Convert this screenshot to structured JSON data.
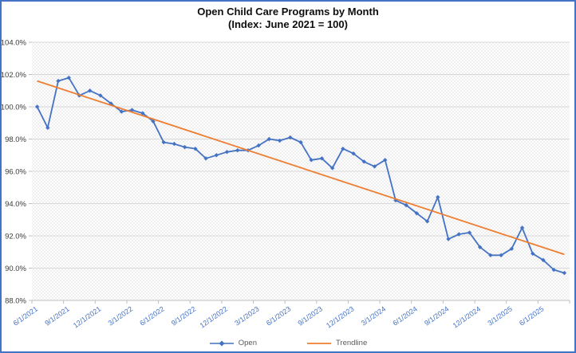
{
  "chart_data": {
    "type": "line",
    "title": "Open Child Care Programs by Month",
    "subtitle": "(Index: June 2021 = 100)",
    "x": [
      "6/1/2021",
      "7/1/2021",
      "8/1/2021",
      "9/1/2021",
      "10/1/2021",
      "11/1/2021",
      "12/1/2021",
      "1/1/2022",
      "2/1/2022",
      "3/1/2022",
      "4/1/2022",
      "5/1/2022",
      "6/1/2022",
      "7/1/2022",
      "8/1/2022",
      "9/1/2022",
      "10/1/2022",
      "11/1/2022",
      "12/1/2022",
      "1/1/2023",
      "2/1/2023",
      "3/1/2023",
      "4/1/2023",
      "5/1/2023",
      "6/1/2023",
      "7/1/2023",
      "8/1/2023",
      "9/1/2023",
      "10/1/2023",
      "11/1/2023",
      "12/1/2023",
      "1/1/2024",
      "2/1/2024",
      "3/1/2024",
      "4/1/2024",
      "5/1/2024",
      "6/1/2024",
      "7/1/2024",
      "8/1/2024",
      "9/1/2024",
      "10/1/2024",
      "11/1/2024",
      "12/1/2024",
      "1/1/2025",
      "2/1/2025",
      "3/1/2025",
      "4/1/2025",
      "5/1/2025",
      "6/1/2025",
      "7/1/2025",
      "8/1/2025"
    ],
    "x_tick_labels": [
      "6/1/2021",
      "9/1/2021",
      "12/1/2021",
      "3/1/2022",
      "6/1/2022",
      "9/1/2022",
      "12/1/2022",
      "3/1/2023",
      "6/1/2023",
      "9/1/2023",
      "12/1/2023",
      "3/1/2024",
      "6/1/2024",
      "9/1/2024",
      "12/1/2024",
      "3/1/2025",
      "6/1/2025"
    ],
    "series": [
      {
        "name": "Open",
        "color": "#4472C4",
        "marker": "diamond",
        "values": [
          100.0,
          98.7,
          101.6,
          101.8,
          100.7,
          101.0,
          100.7,
          100.2,
          99.7,
          99.8,
          99.6,
          99.1,
          97.8,
          97.7,
          97.5,
          97.4,
          96.8,
          97.0,
          97.2,
          97.3,
          97.3,
          97.6,
          98.0,
          97.9,
          98.1,
          97.8,
          96.7,
          96.8,
          96.2,
          97.4,
          97.1,
          96.6,
          96.3,
          96.7,
          94.2,
          93.9,
          93.4,
          92.9,
          94.4,
          91.8,
          92.1,
          92.2,
          91.3,
          90.8,
          90.8,
          91.2,
          92.5,
          90.9,
          90.5,
          89.9,
          89.7
        ]
      },
      {
        "name": "Trendline",
        "color": "#ED7D31",
        "type": "linear-trend",
        "start_value": 101.6,
        "end_value": 90.85
      }
    ],
    "ylim": [
      88,
      104
    ],
    "y_tick_step": 2,
    "y_tick_labels": [
      "88.0%",
      "90.0%",
      "92.0%",
      "94.0%",
      "96.0%",
      "98.0%",
      "100.0%",
      "102.0%",
      "104.0%"
    ],
    "grid": "horizontal",
    "legend_position": "bottom",
    "plot_area_pattern": "diagonal-crosshatch"
  },
  "style": {
    "frame_border_color": "#4472C4",
    "grid_color": "#D9D9D9",
    "axis_color": "#BFBFBF",
    "x_label_color": "#4472C4",
    "y_label_color": "#3b3b3b",
    "legend_text_color": "#595959",
    "hatch_color": "#e7e7e7"
  }
}
